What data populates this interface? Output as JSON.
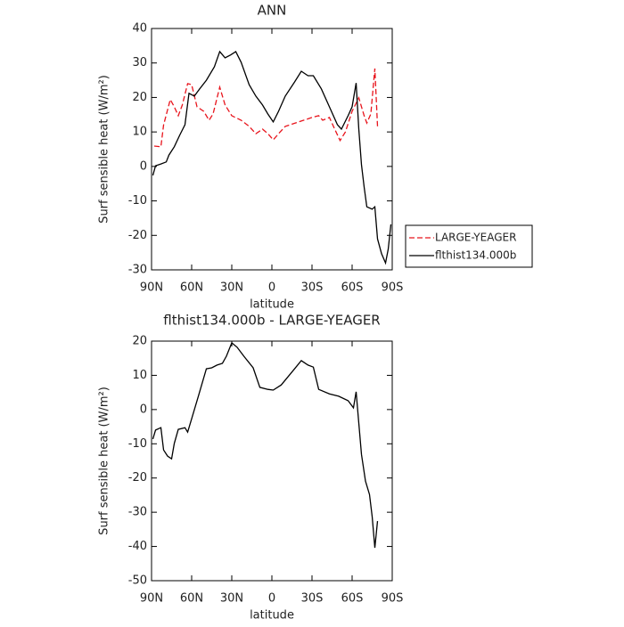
{
  "chart_data": [
    {
      "type": "line",
      "title": "ANN",
      "xlabel": "latitude",
      "ylabel": "Surf sensible heat (W/m²)",
      "xlim": [
        90,
        -90
      ],
      "xticks": [
        {
          "value": 90,
          "label": "90N"
        },
        {
          "value": 60,
          "label": "60N"
        },
        {
          "value": 30,
          "label": "30N"
        },
        0,
        {
          "value": -30,
          "label": "30S"
        },
        {
          "value": -60,
          "label": "60S"
        },
        {
          "value": -90,
          "label": "90S"
        }
      ],
      "ylim": [
        -30,
        40
      ],
      "yticks": [
        -30,
        -20,
        -10,
        0,
        10,
        20,
        30,
        40
      ],
      "legend": "right",
      "series": [
        {
          "name": "LARGE-YEAGER",
          "color": "#e8141c",
          "dash": "dashed",
          "x": [
            88,
            83,
            81,
            76,
            73,
            70,
            67,
            63,
            60,
            56,
            51,
            47,
            44,
            39,
            35,
            30,
            23,
            17,
            12,
            7,
            3,
            -1,
            -5,
            -10,
            -20,
            -30,
            -35,
            -38,
            -43,
            -47,
            -51,
            -55,
            -60,
            -65,
            -69,
            -71,
            -74,
            -77,
            -79
          ],
          "values": [
            5.9,
            5.7,
            12,
            19.4,
            17.3,
            14.7,
            17.8,
            24,
            23.7,
            17.3,
            16,
            13.4,
            15.2,
            23,
            17.8,
            14.7,
            13.4,
            11.6,
            9.5,
            10.8,
            9.5,
            7.7,
            9.5,
            11.6,
            12.9,
            14.2,
            14.7,
            13.4,
            14.2,
            10.8,
            7.5,
            10,
            16,
            19.9,
            14.7,
            12.6,
            15.2,
            28.4,
            11.6
          ]
        },
        {
          "name": "flthist134.000b",
          "color": "#000000",
          "dash": "solid",
          "x": [
            89,
            87,
            83,
            79,
            77,
            73,
            69,
            65,
            62,
            58,
            54,
            49,
            43,
            39,
            35,
            31,
            27,
            23,
            17,
            12,
            7,
            3,
            -1,
            -5,
            -10,
            -17,
            -22,
            -27,
            -31,
            -37,
            -43,
            -49,
            -52,
            -57,
            -60,
            -63,
            -65,
            -67,
            -69,
            -71,
            -75,
            -77,
            -79,
            -82,
            -85,
            -87,
            -89
          ],
          "values": [
            -2.6,
            0.2,
            0.7,
            1.3,
            3.3,
            5.7,
            9,
            12.1,
            21.2,
            20.4,
            22.5,
            25,
            28.9,
            33.3,
            31.5,
            32.3,
            33.3,
            30.2,
            23.7,
            20.4,
            17.8,
            15.2,
            12.9,
            16,
            20.4,
            24.5,
            27.6,
            26.3,
            26.3,
            22.5,
            17.3,
            12.1,
            10.8,
            14.7,
            17.3,
            24.2,
            10.8,
            0.5,
            -6,
            -11.7,
            -12.4,
            -11.7,
            -21,
            -25.3,
            -28,
            -24,
            -16.8
          ]
        }
      ]
    },
    {
      "type": "line",
      "title": "flthist134.000b - LARGE-YEAGER",
      "xlabel": "latitude",
      "ylabel": "Surf sensible heat (W/m²)",
      "xlim": [
        90,
        -90
      ],
      "xticks": [
        {
          "value": 90,
          "label": "90N"
        },
        {
          "value": 60,
          "label": "60N"
        },
        {
          "value": 30,
          "label": "30N"
        },
        0,
        {
          "value": -30,
          "label": "30S"
        },
        {
          "value": -60,
          "label": "60S"
        },
        {
          "value": -90,
          "label": "90S"
        }
      ],
      "ylim": [
        -50,
        20
      ],
      "yticks": [
        -50,
        -40,
        -30,
        -20,
        -10,
        0,
        10,
        20
      ],
      "color": "#000000",
      "x": [
        89,
        87,
        83,
        81,
        78,
        75,
        73,
        70,
        65,
        63,
        60,
        55,
        49,
        45,
        41,
        37,
        34,
        30,
        26,
        21,
        14,
        9,
        3,
        -1,
        -7,
        -11,
        -17,
        -22,
        -27,
        -31,
        -35,
        -43,
        -50,
        -57,
        -61,
        -63,
        -67,
        -70,
        -73,
        -75,
        -77,
        -79
      ],
      "values": [
        -8.6,
        -6,
        -5.3,
        -11.8,
        -13.6,
        -14.4,
        -9.9,
        -5.8,
        -5.3,
        -6.6,
        -2.7,
        3.9,
        11.9,
        12.2,
        13,
        13.5,
        15.6,
        19.5,
        18.2,
        15.6,
        12.2,
        6.5,
        5.9,
        5.7,
        7.2,
        9.1,
        11.9,
        14.3,
        13,
        12.4,
        5.9,
        4.6,
        3.9,
        2.6,
        0.5,
        5.2,
        -13.1,
        -20.9,
        -24.8,
        -31.3,
        -40.4,
        -32.6
      ]
    }
  ]
}
